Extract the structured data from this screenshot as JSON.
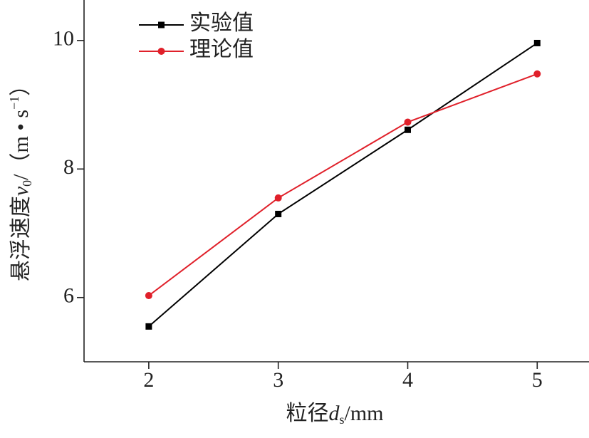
{
  "chart_data": {
    "type": "line",
    "x": [
      2,
      3,
      4,
      5
    ],
    "series": [
      {
        "name": "实验值",
        "color": "#000000",
        "marker": "square",
        "values": [
          5.55,
          7.3,
          8.61,
          9.96
        ]
      },
      {
        "name": "理论值",
        "color": "#e0202a",
        "marker": "circle",
        "values": [
          6.03,
          7.55,
          8.73,
          9.48
        ]
      }
    ],
    "xlabel": [
      "粒径",
      "d",
      "s",
      "/mm"
    ],
    "ylabel": [
      "悬浮速度",
      "v",
      "0",
      "/（m • s",
      "−1",
      "）"
    ],
    "xlim": [
      1.5,
      5.4
    ],
    "ylim": [
      5,
      10.63
    ],
    "xticks": [
      2,
      3,
      4,
      5
    ],
    "yticks": [
      6,
      8,
      10
    ],
    "grid": false,
    "legend": "upper left"
  }
}
